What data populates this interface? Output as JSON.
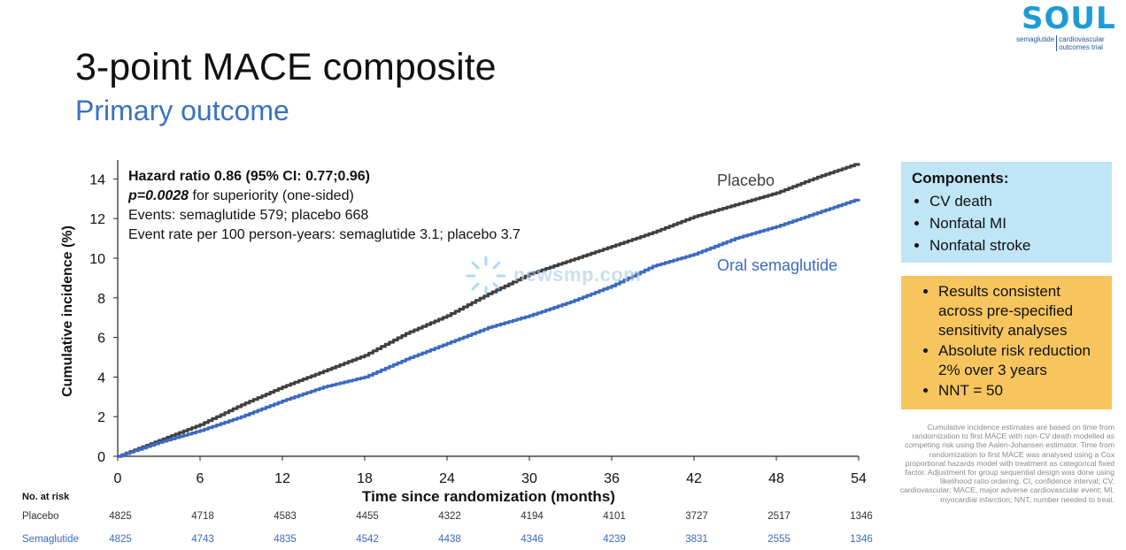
{
  "logo": {
    "word": "SOUL",
    "sub_left": "semaglutide",
    "sub_right_1": "cardiovascular",
    "sub_right_2": "outcomes trial"
  },
  "title": "3-point MACE composite",
  "subtitle": "Primary outcome",
  "colors": {
    "placebo": "#404040",
    "semaglutide": "#3a6bbf",
    "components_box": "#bfe5f6",
    "key_box": "#f6c55e",
    "subtitle": "#3a72c0"
  },
  "stats": {
    "hr_text": "Hazard ratio 0.86 (95% CI: 0.77;0.96)",
    "p_bold": "p=0.0028",
    "p_rest": " for superiority (one-sided)",
    "events": "Events: semaglutide 579; placebo 668",
    "rate": "Event rate per 100 person-years: semaglutide 3.1; placebo 3.7"
  },
  "components": {
    "heading": "Components:",
    "items": [
      "CV death",
      "Nonfatal MI",
      "Nonfatal stroke"
    ]
  },
  "key_points": [
    "Results consistent across pre-specified sensitivity analyses",
    "Absolute risk reduction 2% over 3 years",
    "NNT = 50"
  ],
  "footnote": "Cumulative incidence estimates are based on time from randomization to first MACE with non-CV death modelled as competing risk using the Aalen-Johansen estimator. Time from randomization to first MACE was analysed using a Cox proportional hazards model with treatment as categorical fixed factor. Adjustment for group sequential design was done using likelihood ratio ordering. CI, confidence interval; CV, cardiovascular; MACE, major adverse cardiovascular event; MI, myocardial infarction; NNT, number needed to treat.",
  "watermark": "newsmp.com",
  "chart_data": {
    "type": "line",
    "xlabel": "Time since randomization (months)",
    "ylabel": "Cumulative incidence (%)",
    "xlim": [
      0,
      54
    ],
    "ylim": [
      0,
      15
    ],
    "x_ticks": [
      0,
      6,
      12,
      18,
      24,
      30,
      36,
      42,
      48,
      54
    ],
    "y_ticks": [
      0,
      2,
      4,
      6,
      8,
      10,
      12,
      14
    ],
    "grid": false,
    "series": [
      {
        "name": "Placebo",
        "x": [
          0,
          3,
          6,
          9,
          12,
          15,
          18,
          21,
          24,
          27,
          30,
          33,
          36,
          39,
          42,
          45,
          48,
          51,
          54
        ],
        "values": [
          0,
          0.8,
          1.6,
          2.6,
          3.5,
          4.3,
          5.1,
          6.2,
          7.1,
          8.2,
          9.2,
          9.9,
          10.6,
          11.3,
          12.1,
          12.7,
          13.3,
          14.1,
          14.8
        ]
      },
      {
        "name": "Oral semaglutide",
        "x": [
          0,
          3,
          6,
          9,
          12,
          15,
          18,
          21,
          24,
          27,
          30,
          33,
          36,
          39,
          42,
          45,
          48,
          51,
          54
        ],
        "values": [
          0,
          0.7,
          1.3,
          2.0,
          2.8,
          3.5,
          4.0,
          4.9,
          5.7,
          6.5,
          7.1,
          7.8,
          8.6,
          9.6,
          10.2,
          11.0,
          11.6,
          12.3,
          13.0
        ]
      }
    ],
    "at_risk": {
      "label": "No. at risk",
      "rows": [
        {
          "name": "Placebo",
          "values": [
            4825,
            4718,
            4583,
            4455,
            4322,
            4194,
            4101,
            3727,
            2517,
            1346
          ]
        },
        {
          "name": "Semaglutide",
          "values": [
            4825,
            4743,
            4835,
            4542,
            4438,
            4346,
            4239,
            3831,
            2555,
            1346
          ]
        }
      ]
    }
  }
}
